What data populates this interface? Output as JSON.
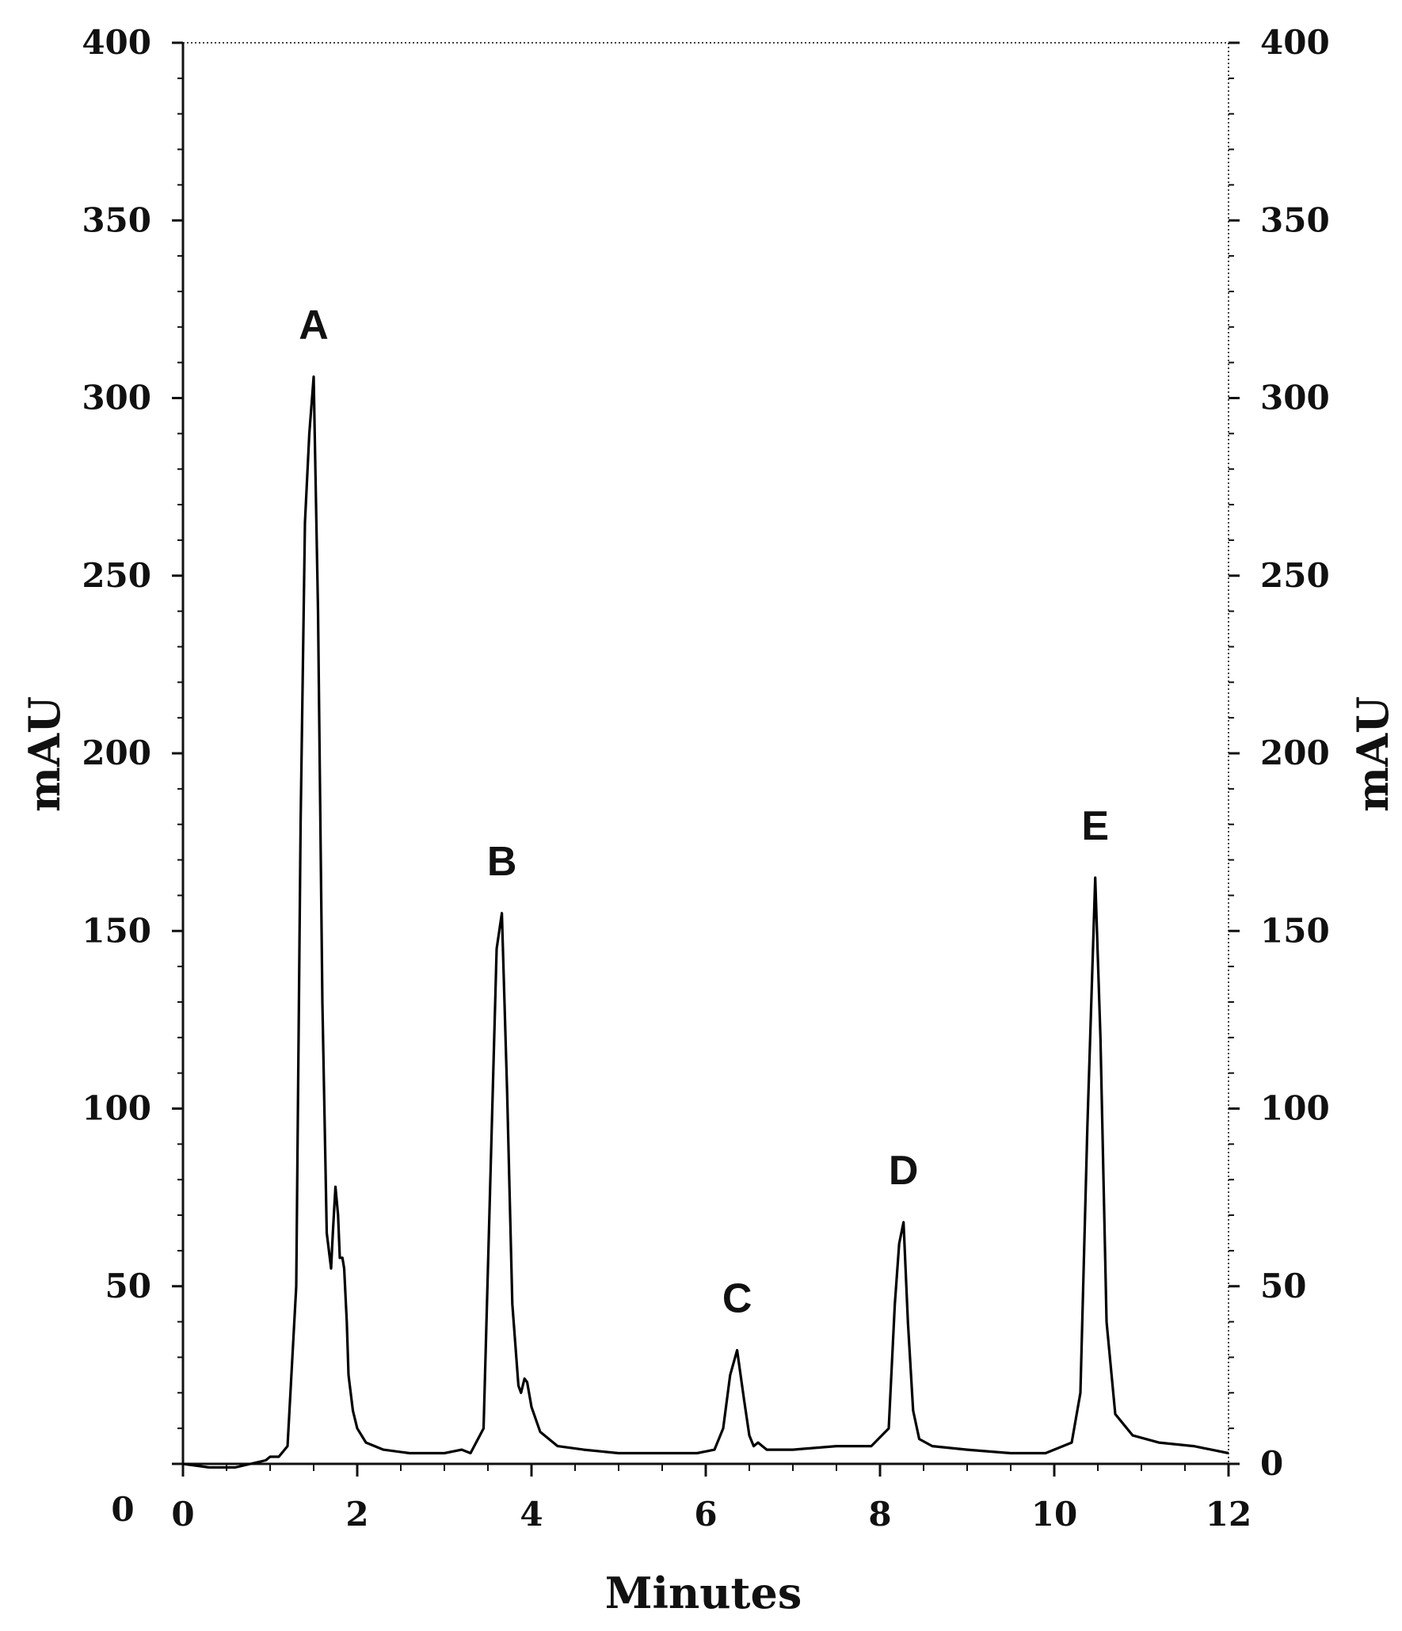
{
  "chart_data": {
    "type": "line",
    "title": "",
    "xlabel": "Minutes",
    "ylabel_left": "mAU",
    "ylabel_right": "mAU",
    "xlim": [
      0,
      12
    ],
    "ylim": [
      0,
      400
    ],
    "x_ticks": [
      "0",
      "2",
      "4",
      "6",
      "8",
      "10",
      "12"
    ],
    "x_tick_values": [
      0,
      2,
      4,
      6,
      8,
      10,
      12
    ],
    "y_ticks": [
      "0",
      "50",
      "100",
      "150",
      "200",
      "250",
      "300",
      "350",
      "400"
    ],
    "y_tick_values": [
      0,
      50,
      100,
      150,
      200,
      250,
      300,
      350,
      400
    ],
    "grid": false,
    "peaks": [
      {
        "label": "A",
        "x": 1.5,
        "y": 306
      },
      {
        "label": "B",
        "x": 3.66,
        "y": 155
      },
      {
        "label": "C",
        "x": 6.36,
        "y": 32
      },
      {
        "label": "D",
        "x": 8.27,
        "y": 68
      },
      {
        "label": "E",
        "x": 10.47,
        "y": 165
      }
    ],
    "series": [
      {
        "x": [
          0,
          0.3,
          0.6,
          0.95,
          1.0,
          1.1,
          1.2,
          1.3,
          1.35,
          1.4,
          1.45,
          1.5,
          1.55,
          1.6,
          1.65,
          1.7,
          1.72,
          1.75,
          1.78,
          1.8,
          1.83,
          1.85,
          1.88,
          1.9,
          1.95,
          2.0,
          2.1,
          2.3,
          2.6,
          3.0,
          3.2,
          3.3,
          3.45,
          3.55,
          3.6,
          3.66,
          3.72,
          3.78,
          3.85,
          3.88,
          3.92,
          3.95,
          4.0,
          4.1,
          4.3,
          4.6,
          5.0,
          5.5,
          5.9,
          6.1,
          6.2,
          6.28,
          6.36,
          6.44,
          6.5,
          6.55,
          6.6,
          6.7,
          7.0,
          7.5,
          7.9,
          8.1,
          8.17,
          8.22,
          8.27,
          8.32,
          8.38,
          8.45,
          8.6,
          9.0,
          9.5,
          9.9,
          10.2,
          10.3,
          10.38,
          10.47,
          10.53,
          10.6,
          10.7,
          10.9,
          11.2,
          11.6,
          12.0
        ],
        "y": [
          0,
          -1,
          -1,
          1,
          2,
          2,
          5,
          50,
          180,
          265,
          290,
          306,
          240,
          130,
          65,
          55,
          65,
          78,
          70,
          58,
          58,
          55,
          40,
          25,
          15,
          10,
          6,
          4,
          3,
          3,
          4,
          3,
          10,
          100,
          145,
          155,
          105,
          45,
          22,
          20,
          24,
          23,
          16,
          9,
          5,
          4,
          3,
          3,
          3,
          4,
          10,
          25,
          32,
          18,
          8,
          5,
          6,
          4,
          4,
          5,
          5,
          10,
          45,
          62,
          68,
          40,
          15,
          7,
          5,
          4,
          3,
          3,
          6,
          20,
          95,
          165,
          120,
          40,
          14,
          8,
          6,
          5,
          3
        ]
      }
    ]
  }
}
